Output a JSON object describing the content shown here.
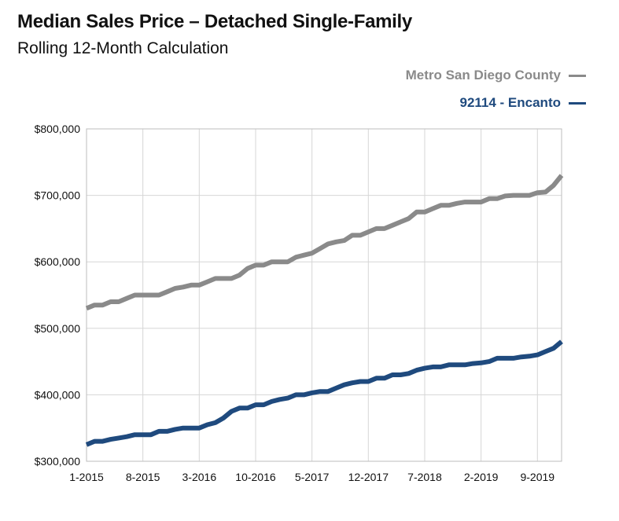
{
  "header": {
    "title": "Median Sales Price – Detached Single-Family",
    "subtitle": "Rolling 12-Month Calculation"
  },
  "legend": [
    {
      "label": "Metro San Diego County",
      "color": "#8a8a8a"
    },
    {
      "label": "92114 - Encanto",
      "color": "#1f4a7e"
    }
  ],
  "chart_data": {
    "type": "line",
    "title": "Median Sales Price – Detached Single-Family",
    "subtitle": "Rolling 12-Month Calculation",
    "x_tick_labels": [
      "1-2015",
      "8-2015",
      "3-2016",
      "10-2016",
      "5-2017",
      "12-2017",
      "7-2018",
      "2-2019",
      "9-2019"
    ],
    "y_tick_labels": [
      "$300,000",
      "$400,000",
      "$500,000",
      "$600,000",
      "$700,000",
      "$800,000"
    ],
    "ylim": [
      300000,
      800000
    ],
    "grid": true,
    "legend_position": "top-right",
    "x": [
      "2015-01",
      "2015-02",
      "2015-03",
      "2015-04",
      "2015-05",
      "2015-06",
      "2015-07",
      "2015-08",
      "2015-09",
      "2015-10",
      "2015-11",
      "2015-12",
      "2016-01",
      "2016-02",
      "2016-03",
      "2016-04",
      "2016-05",
      "2016-06",
      "2016-07",
      "2016-08",
      "2016-09",
      "2016-10",
      "2016-11",
      "2016-12",
      "2017-01",
      "2017-02",
      "2017-03",
      "2017-04",
      "2017-05",
      "2017-06",
      "2017-07",
      "2017-08",
      "2017-09",
      "2017-10",
      "2017-11",
      "2017-12",
      "2018-01",
      "2018-02",
      "2018-03",
      "2018-04",
      "2018-05",
      "2018-06",
      "2018-07",
      "2018-08",
      "2018-09",
      "2018-10",
      "2018-11",
      "2018-12",
      "2019-01",
      "2019-02",
      "2019-03",
      "2019-04",
      "2019-05",
      "2019-06",
      "2019-07",
      "2019-08",
      "2019-09",
      "2019-10",
      "2019-11",
      "2019-12"
    ],
    "series": [
      {
        "name": "Metro San Diego County",
        "color": "#8a8a8a",
        "values": [
          530000,
          535000,
          535000,
          540000,
          540000,
          545000,
          550000,
          550000,
          550000,
          550000,
          555000,
          560000,
          562000,
          565000,
          565000,
          570000,
          575000,
          575000,
          575000,
          580000,
          590000,
          595000,
          595000,
          600000,
          600000,
          600000,
          607000,
          610000,
          613000,
          620000,
          627000,
          630000,
          632000,
          640000,
          640000,
          645000,
          650000,
          650000,
          655000,
          660000,
          665000,
          675000,
          675000,
          680000,
          685000,
          685000,
          688000,
          690000,
          690000,
          690000,
          695000,
          695000,
          699000,
          700000,
          700000,
          700000,
          704000,
          705000,
          715000,
          730000
        ]
      },
      {
        "name": "92114 - Encanto",
        "color": "#1f4a7e",
        "values": [
          325000,
          330000,
          330000,
          333000,
          335000,
          337000,
          340000,
          340000,
          340000,
          345000,
          345000,
          348000,
          350000,
          350000,
          350000,
          355000,
          358000,
          365000,
          375000,
          380000,
          380000,
          385000,
          385000,
          390000,
          393000,
          395000,
          400000,
          400000,
          403000,
          405000,
          405000,
          410000,
          415000,
          418000,
          420000,
          420000,
          425000,
          425000,
          430000,
          430000,
          432000,
          437000,
          440000,
          442000,
          442000,
          445000,
          445000,
          445000,
          447000,
          448000,
          450000,
          455000,
          455000,
          455000,
          457000,
          458000,
          460000,
          465000,
          470000,
          480000
        ]
      }
    ]
  }
}
